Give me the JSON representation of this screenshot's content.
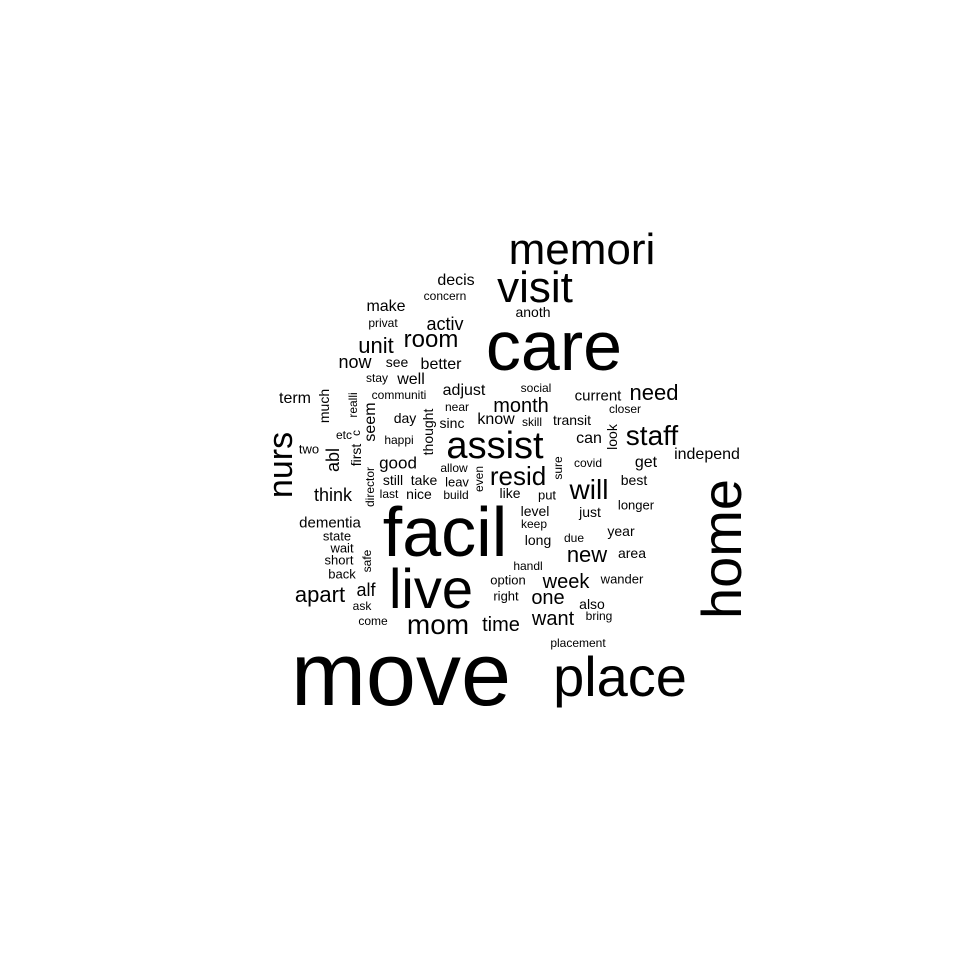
{
  "word_cloud": {
    "text_color": "#000000",
    "background": "#ffffff",
    "words": [
      {
        "text": "move",
        "weight": 100,
        "orientation": "horizontal"
      },
      {
        "text": "care",
        "weight": 78,
        "orientation": "horizontal"
      },
      {
        "text": "facil",
        "weight": 78,
        "orientation": "horizontal"
      },
      {
        "text": "place",
        "weight": 62,
        "orientation": "horizontal"
      },
      {
        "text": "home",
        "weight": 62,
        "orientation": "vertical"
      },
      {
        "text": "live",
        "weight": 58,
        "orientation": "horizontal"
      },
      {
        "text": "memori",
        "weight": 50,
        "orientation": "horizontal"
      },
      {
        "text": "visit",
        "weight": 48,
        "orientation": "horizontal"
      },
      {
        "text": "assist",
        "weight": 40,
        "orientation": "horizontal"
      },
      {
        "text": "nurs",
        "weight": 38,
        "orientation": "vertical"
      },
      {
        "text": "mom",
        "weight": 32,
        "orientation": "horizontal"
      },
      {
        "text": "staff",
        "weight": 30,
        "orientation": "horizontal"
      },
      {
        "text": "will",
        "weight": 30,
        "orientation": "horizontal"
      },
      {
        "text": "resid",
        "weight": 26,
        "orientation": "horizontal"
      },
      {
        "text": "room",
        "weight": 24,
        "orientation": "horizontal"
      },
      {
        "text": "new",
        "weight": 22,
        "orientation": "horizontal"
      },
      {
        "text": "apart",
        "weight": 22,
        "orientation": "horizontal"
      },
      {
        "text": "unit",
        "weight": 22,
        "orientation": "horizontal"
      },
      {
        "text": "need",
        "weight": 22,
        "orientation": "horizontal"
      },
      {
        "text": "month",
        "weight": 20,
        "orientation": "horizontal"
      },
      {
        "text": "time",
        "weight": 20,
        "orientation": "horizontal"
      },
      {
        "text": "want",
        "weight": 20,
        "orientation": "horizontal"
      },
      {
        "text": "one",
        "weight": 20,
        "orientation": "horizontal"
      },
      {
        "text": "week",
        "weight": 20,
        "orientation": "horizontal"
      },
      {
        "text": "think",
        "weight": 18,
        "orientation": "horizontal"
      },
      {
        "text": "now",
        "weight": 18,
        "orientation": "horizontal"
      },
      {
        "text": "activ",
        "weight": 18,
        "orientation": "horizontal"
      },
      {
        "text": "alf",
        "weight": 18,
        "orientation": "horizontal"
      },
      {
        "text": "abl",
        "weight": 18,
        "orientation": "vertical"
      },
      {
        "text": "good",
        "weight": 17,
        "orientation": "horizontal"
      },
      {
        "text": "decis",
        "weight": 16,
        "orientation": "horizontal"
      },
      {
        "text": "make",
        "weight": 16,
        "orientation": "horizontal"
      },
      {
        "text": "better",
        "weight": 16,
        "orientation": "horizontal"
      },
      {
        "text": "well",
        "weight": 16,
        "orientation": "horizontal"
      },
      {
        "text": "adjust",
        "weight": 16,
        "orientation": "horizontal"
      },
      {
        "text": "dementia",
        "weight": 15,
        "orientation": "horizontal"
      },
      {
        "text": "independ",
        "weight": 16,
        "orientation": "horizontal"
      },
      {
        "text": "can",
        "weight": 16,
        "orientation": "horizontal"
      },
      {
        "text": "get",
        "weight": 16,
        "orientation": "horizontal"
      },
      {
        "text": "know",
        "weight": 16,
        "orientation": "horizontal"
      },
      {
        "text": "term",
        "weight": 16,
        "orientation": "horizontal"
      },
      {
        "text": "seem",
        "weight": 16,
        "orientation": "vertical"
      },
      {
        "text": "current",
        "weight": 15,
        "orientation": "horizontal"
      },
      {
        "text": "level",
        "weight": 14,
        "orientation": "horizontal"
      },
      {
        "text": "long",
        "weight": 14,
        "orientation": "horizontal"
      },
      {
        "text": "area",
        "weight": 14,
        "orientation": "horizontal"
      },
      {
        "text": "just",
        "weight": 14,
        "orientation": "horizontal"
      },
      {
        "text": "also",
        "weight": 14,
        "orientation": "horizontal"
      },
      {
        "text": "anoth",
        "weight": 14,
        "orientation": "horizontal"
      },
      {
        "text": "transit",
        "weight": 14,
        "orientation": "horizontal"
      },
      {
        "text": "sinc",
        "weight": 14,
        "orientation": "horizontal"
      },
      {
        "text": "day",
        "weight": 14,
        "orientation": "horizontal"
      },
      {
        "text": "like",
        "weight": 14,
        "orientation": "horizontal"
      },
      {
        "text": "year",
        "weight": 14,
        "orientation": "horizontal"
      },
      {
        "text": "best",
        "weight": 14,
        "orientation": "horizontal"
      },
      {
        "text": "still",
        "weight": 14,
        "orientation": "horizontal"
      },
      {
        "text": "take",
        "weight": 14,
        "orientation": "horizontal"
      },
      {
        "text": "nice",
        "weight": 14,
        "orientation": "horizontal"
      },
      {
        "text": "see",
        "weight": 14,
        "orientation": "horizontal"
      },
      {
        "text": "look",
        "weight": 14,
        "orientation": "vertical"
      },
      {
        "text": "thought",
        "weight": 14,
        "orientation": "vertical"
      },
      {
        "text": "first",
        "weight": 14,
        "orientation": "vertical"
      },
      {
        "text": "much",
        "weight": 14,
        "orientation": "vertical"
      },
      {
        "text": "longer",
        "weight": 13,
        "orientation": "horizontal"
      },
      {
        "text": "wander",
        "weight": 13,
        "orientation": "horizontal"
      },
      {
        "text": "option",
        "weight": 13,
        "orientation": "horizontal"
      },
      {
        "text": "right",
        "weight": 13,
        "orientation": "horizontal"
      },
      {
        "text": "state",
        "weight": 13,
        "orientation": "horizontal"
      },
      {
        "text": "wait",
        "weight": 13,
        "orientation": "horizontal"
      },
      {
        "text": "short",
        "weight": 13,
        "orientation": "horizontal"
      },
      {
        "text": "back",
        "weight": 13,
        "orientation": "horizontal"
      },
      {
        "text": "leav",
        "weight": 13,
        "orientation": "horizontal"
      },
      {
        "text": "put",
        "weight": 13,
        "orientation": "horizontal"
      },
      {
        "text": "two",
        "weight": 13,
        "orientation": "horizontal"
      },
      {
        "text": "covid",
        "weight": 12,
        "orientation": "horizontal"
      },
      {
        "text": "skill",
        "weight": 12,
        "orientation": "horizontal"
      },
      {
        "text": "near",
        "weight": 12,
        "orientation": "horizontal"
      },
      {
        "text": "social",
        "weight": 12,
        "orientation": "horizontal"
      },
      {
        "text": "closer",
        "weight": 12,
        "orientation": "horizontal"
      },
      {
        "text": "concern",
        "weight": 12,
        "orientation": "horizontal"
      },
      {
        "text": "privat",
        "weight": 12,
        "orientation": "horizontal"
      },
      {
        "text": "stay",
        "weight": 12,
        "orientation": "horizontal"
      },
      {
        "text": "communiti",
        "weight": 12,
        "orientation": "horizontal"
      },
      {
        "text": "happi",
        "weight": 12,
        "orientation": "horizontal"
      },
      {
        "text": "etc",
        "weight": 12,
        "orientation": "horizontal"
      },
      {
        "text": "allow",
        "weight": 12,
        "orientation": "horizontal"
      },
      {
        "text": "build",
        "weight": 12,
        "orientation": "horizontal"
      },
      {
        "text": "last",
        "weight": 12,
        "orientation": "horizontal"
      },
      {
        "text": "keep",
        "weight": 12,
        "orientation": "horizontal"
      },
      {
        "text": "due",
        "weight": 12,
        "orientation": "horizontal"
      },
      {
        "text": "handl",
        "weight": 12,
        "orientation": "horizontal"
      },
      {
        "text": "bring",
        "weight": 12,
        "orientation": "horizontal"
      },
      {
        "text": "placement",
        "weight": 12,
        "orientation": "horizontal"
      },
      {
        "text": "come",
        "weight": 12,
        "orientation": "horizontal"
      },
      {
        "text": "ask",
        "weight": 12,
        "orientation": "horizontal"
      },
      {
        "text": "realli",
        "weight": 12,
        "orientation": "vertical"
      },
      {
        "text": "c",
        "weight": 12,
        "orientation": "vertical"
      },
      {
        "text": "even",
        "weight": 12,
        "orientation": "vertical"
      },
      {
        "text": "sure",
        "weight": 12,
        "orientation": "vertical"
      },
      {
        "text": "director",
        "weight": 12,
        "orientation": "vertical"
      },
      {
        "text": "safe",
        "weight": 12,
        "orientation": "vertical"
      }
    ]
  }
}
